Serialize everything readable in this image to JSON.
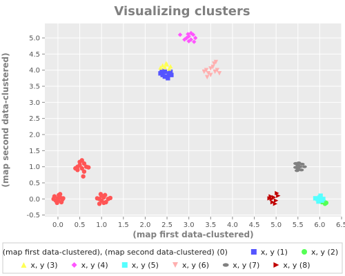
{
  "chart_data": {
    "type": "scatter",
    "title": "Visualizing clusters",
    "xlabel": "(map first data-clustered)",
    "ylabel": "(map second data-clustered)",
    "xlim": [
      -0.3,
      6.5
    ],
    "ylim": [
      -0.55,
      5.45
    ],
    "xticks": [
      "0.0",
      "0.5",
      "1.0",
      "1.5",
      "2.0",
      "2.5",
      "3.0",
      "3.5",
      "4.0",
      "4.5",
      "5.0",
      "5.5",
      "6.0",
      "6.5"
    ],
    "yticks": [
      "-0.5",
      "0.0",
      "0.5",
      "1.0",
      "1.5",
      "2.0",
      "2.5",
      "3.0",
      "3.5",
      "4.0",
      "4.5",
      "5.0"
    ],
    "grid": true,
    "legend_position": "bottom",
    "series": [
      {
        "name": "(map first data-clustered), (map second data-clustered) (0)",
        "color": "#ff5555",
        "marker": "circle",
        "points": [
          [
            0.0,
            0.02
          ],
          [
            -0.05,
            -0.05
          ],
          [
            0.05,
            0.05
          ],
          [
            0.1,
            -0.02
          ],
          [
            -0.08,
            0.08
          ],
          [
            0.02,
            0.12
          ],
          [
            0.08,
            -0.1
          ],
          [
            -0.02,
            -0.12
          ],
          [
            0.12,
            0.02
          ],
          [
            0.0,
            -0.05
          ],
          [
            0.05,
            0.15
          ],
          [
            -0.1,
            0.0
          ],
          [
            0.45,
            1.0
          ],
          [
            0.5,
            1.05
          ],
          [
            0.55,
            0.95
          ],
          [
            0.6,
            1.1
          ],
          [
            0.4,
            0.95
          ],
          [
            0.5,
            1.15
          ],
          [
            0.65,
            1.0
          ],
          [
            0.55,
            1.2
          ],
          [
            0.45,
            0.9
          ],
          [
            0.6,
            0.85
          ],
          [
            0.7,
            0.98
          ],
          [
            0.58,
            0.7
          ],
          [
            0.95,
            0.0
          ],
          [
            1.0,
            -0.05
          ],
          [
            1.05,
            0.05
          ],
          [
            1.1,
            -0.1
          ],
          [
            0.9,
            0.02
          ],
          [
            1.0,
            0.1
          ],
          [
            1.15,
            0.0
          ],
          [
            0.95,
            -0.15
          ],
          [
            1.05,
            -0.12
          ],
          [
            1.2,
            0.03
          ],
          [
            0.98,
            0.15
          ],
          [
            1.08,
            0.12
          ]
        ]
      },
      {
        "name": "x, y (1)",
        "color": "#5555ff",
        "marker": "square",
        "points": [
          [
            2.35,
            3.9
          ],
          [
            2.4,
            3.85
          ],
          [
            2.45,
            3.95
          ],
          [
            2.5,
            3.8
          ],
          [
            2.55,
            3.9
          ],
          [
            2.6,
            3.85
          ],
          [
            2.45,
            3.8
          ],
          [
            2.38,
            3.98
          ],
          [
            2.52,
            3.75
          ],
          [
            2.58,
            3.95
          ]
        ]
      },
      {
        "name": "x, y (2)",
        "color": "#55ff55",
        "marker": "circle",
        "points": [
          [
            6.05,
            -0.1
          ],
          [
            6.1,
            -0.08
          ],
          [
            6.15,
            -0.12
          ],
          [
            6.12,
            -0.15
          ],
          [
            6.0,
            -0.05
          ]
        ]
      },
      {
        "name": "x, y (3)",
        "color": "#ffff55",
        "marker": "triangle-up",
        "points": [
          [
            2.4,
            4.15
          ],
          [
            2.45,
            4.1
          ],
          [
            2.5,
            4.18
          ],
          [
            2.55,
            4.05
          ],
          [
            2.35,
            4.08
          ],
          [
            2.48,
            4.22
          ],
          [
            2.58,
            4.12
          ]
        ]
      },
      {
        "name": "x, y (4)",
        "color": "#ff55ff",
        "marker": "diamond",
        "points": [
          [
            2.95,
            5.0
          ],
          [
            3.0,
            5.05
          ],
          [
            3.05,
            4.95
          ],
          [
            3.1,
            5.1
          ],
          [
            2.9,
            4.95
          ],
          [
            3.0,
            4.9
          ],
          [
            3.15,
            5.0
          ],
          [
            3.05,
            5.15
          ],
          [
            2.98,
            5.12
          ],
          [
            3.12,
            4.88
          ],
          [
            2.8,
            5.1
          ]
        ]
      },
      {
        "name": "x, y (5)",
        "color": "#55ffff",
        "marker": "square",
        "points": [
          [
            5.95,
            0.0
          ],
          [
            6.0,
            0.05
          ],
          [
            6.05,
            -0.05
          ],
          [
            5.9,
            0.02
          ],
          [
            6.02,
            0.1
          ],
          [
            6.08,
            0.0
          ],
          [
            5.97,
            -0.08
          ],
          [
            6.03,
            -0.02
          ]
        ]
      },
      {
        "name": "x, y (6)",
        "color": "#ffafaf",
        "marker": "triangle-down",
        "points": [
          [
            3.4,
            4.0
          ],
          [
            3.5,
            4.05
          ],
          [
            3.6,
            3.95
          ],
          [
            3.45,
            3.9
          ],
          [
            3.55,
            4.1
          ],
          [
            3.65,
            4.0
          ],
          [
            3.35,
            3.95
          ],
          [
            3.7,
            3.9
          ],
          [
            3.5,
            3.85
          ],
          [
            3.58,
            4.2
          ],
          [
            3.42,
            3.78
          ],
          [
            3.62,
            4.25
          ]
        ]
      },
      {
        "name": "x, y (7)",
        "color": "#808080",
        "marker": "ellipse",
        "points": [
          [
            5.45,
            1.1
          ],
          [
            5.5,
            1.05
          ],
          [
            5.55,
            1.0
          ],
          [
            5.5,
            0.95
          ],
          [
            5.6,
            1.08
          ],
          [
            5.45,
            0.98
          ],
          [
            5.58,
            0.9
          ],
          [
            5.52,
            1.12
          ],
          [
            5.65,
            1.0
          ],
          [
            5.48,
            0.88
          ]
        ]
      },
      {
        "name": "x, y (8)",
        "color": "#c00000",
        "marker": "triangle-right",
        "points": [
          [
            4.9,
            0.0
          ],
          [
            4.95,
            0.05
          ],
          [
            5.0,
            -0.05
          ],
          [
            4.85,
            0.02
          ],
          [
            5.05,
            0.1
          ],
          [
            4.92,
            -0.1
          ],
          [
            5.02,
            0.18
          ],
          [
            4.98,
            -0.15
          ],
          [
            4.88,
            0.08
          ]
        ]
      }
    ]
  }
}
